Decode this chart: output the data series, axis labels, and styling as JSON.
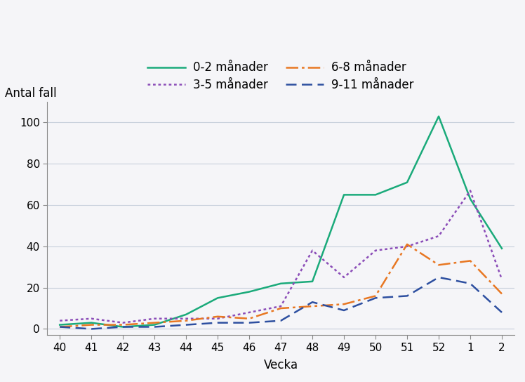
{
  "x_labels": [
    "40",
    "41",
    "42",
    "43",
    "44",
    "45",
    "46",
    "47",
    "48",
    "49",
    "50",
    "51",
    "52",
    "1",
    "2"
  ],
  "x_positions": [
    0,
    1,
    2,
    3,
    4,
    5,
    6,
    7,
    8,
    9,
    10,
    11,
    12,
    13,
    14
  ],
  "series_order": [
    "0-2 månader",
    "3-5 månader",
    "6-8 månader",
    "9-11 månader"
  ],
  "legend_order": [
    "0-2 månader",
    "3-5 månader",
    "6-8 månader",
    "9-11 månader"
  ],
  "series": {
    "0-2 månader": {
      "values": [
        2,
        3,
        1,
        2,
        7,
        15,
        18,
        22,
        23,
        65,
        65,
        71,
        103,
        63,
        39
      ],
      "color": "#1aaa7a",
      "linestyle": "solid"
    },
    "3-5 månader": {
      "values": [
        4,
        5,
        3,
        5,
        5,
        5,
        8,
        11,
        38,
        25,
        38,
        40,
        45,
        67,
        24
      ],
      "color": "#8b4db8",
      "linestyle": "densely_dotted"
    },
    "6-8 månader": {
      "values": [
        1,
        2,
        2,
        3,
        4,
        6,
        5,
        10,
        11,
        12,
        16,
        41,
        31,
        33,
        17
      ],
      "color": "#e87722",
      "linestyle": "dashdot"
    },
    "9-11 månader": {
      "values": [
        1,
        0,
        1,
        1,
        2,
        3,
        3,
        4,
        13,
        9,
        15,
        16,
        25,
        22,
        8
      ],
      "color": "#2d4fa0",
      "linestyle": "dashed"
    }
  },
  "ylabel": "Antal fall",
  "xlabel": "Vecka",
  "ylim": [
    -3,
    110
  ],
  "yticks": [
    0,
    20,
    40,
    60,
    80,
    100
  ],
  "background_color": "#f5f5f8",
  "grid_color": "#c8d0dc",
  "linewidth": 1.8,
  "axis_fontsize": 12,
  "tick_fontsize": 11
}
